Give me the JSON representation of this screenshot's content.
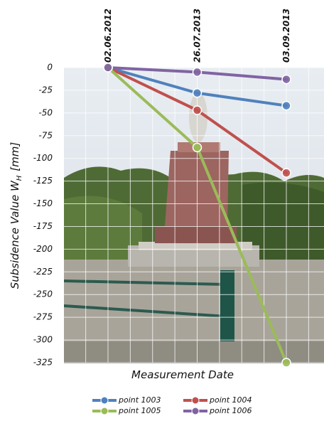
{
  "chart_data": {
    "type": "line",
    "x_label": "Measurement Date",
    "y_label": "Subsidence Value W",
    "y_label_subscript": "H",
    "y_label_unit": "[mm]",
    "categories": [
      "02.06.2012",
      "26.07.2013",
      "03.09.2013"
    ],
    "series": [
      {
        "name": "point 1003",
        "color": "#4f81bd",
        "values": [
          0,
          -28,
          -42
        ]
      },
      {
        "name": "point 1004",
        "color": "#c0504d",
        "values": [
          0,
          -47,
          -116
        ]
      },
      {
        "name": "point 1005",
        "color": "#9bbb59",
        "values": [
          0,
          -88,
          -325
        ]
      },
      {
        "name": "point 1006",
        "color": "#8064a2",
        "values": [
          0,
          -5,
          -13
        ]
      }
    ],
    "ylim": [
      -325,
      0
    ],
    "yticks": [
      0,
      -25,
      -50,
      -75,
      -100,
      -125,
      -150,
      -175,
      -200,
      -225,
      -250,
      -275,
      -300,
      -325
    ],
    "grid": true
  }
}
